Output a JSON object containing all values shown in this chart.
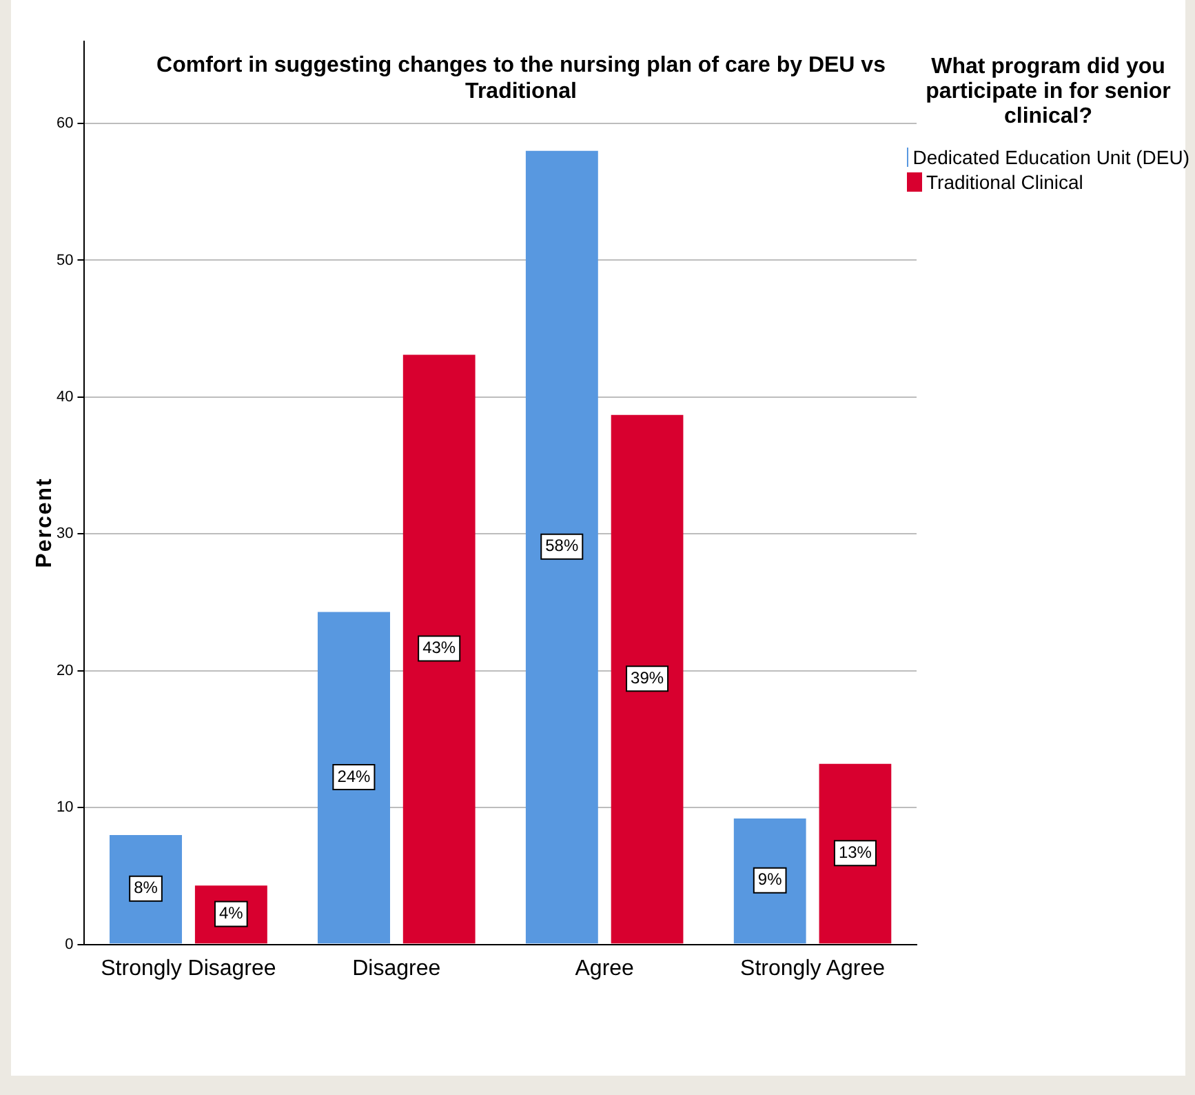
{
  "chart_data": {
    "type": "bar",
    "title": "Comfort in suggesting changes to the nursing plan of care by DEU vs Traditional",
    "ylabel": "Percent",
    "legend_title": "What program did you participate in for senior clinical?",
    "categories": [
      "Strongly Disagree",
      "Disagree",
      "Agree",
      "Strongly Agree"
    ],
    "series": [
      {
        "name": "Dedicated Education Unit (DEU)",
        "color": "#5898e0",
        "values": [
          8.1,
          24.4,
          58.1,
          9.3
        ],
        "value_labels": [
          "8%",
          "24%",
          "58%",
          "9%"
        ]
      },
      {
        "name": "Traditional Clinical",
        "color": "#d8002f",
        "values": [
          4.4,
          43.2,
          38.8,
          13.3
        ],
        "value_labels": [
          "4%",
          "43%",
          "39%",
          "13%"
        ]
      }
    ],
    "ylim": [
      0,
      66
    ],
    "yticks": [
      0,
      10,
      20,
      30,
      40,
      50,
      60
    ],
    "grid": "y",
    "legend": "top right"
  }
}
